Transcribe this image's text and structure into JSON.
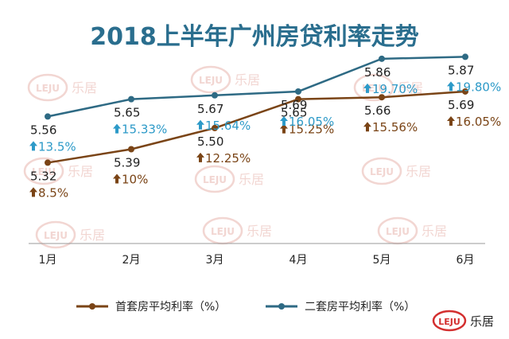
{
  "colors": {
    "title": "#2a6e8e",
    "first_home": "#7a4416",
    "second_home": "#2e6a84",
    "second_pct": "#2d9ac8",
    "arrow_first": "#7a4416",
    "arrow_second": "#2d9ac8",
    "axis": "#9a9a9a",
    "logo_red": "#d32f2f",
    "watermark": "#f2d6d2"
  },
  "logo": {
    "mark": "LEJU",
    "text": "乐居",
    "icon": "leju-logo-icon"
  },
  "chart_data": {
    "type": "line",
    "title": "2018上半年广州房贷利率走势",
    "categories": [
      "1月",
      "2月",
      "3月",
      "4月",
      "5月",
      "6月"
    ],
    "ylim": [
      4.9,
      6.0
    ],
    "grid": false,
    "legend_position": "bottom",
    "series": [
      {
        "name": "首套房平均利率（%）",
        "values": [
          5.32,
          5.39,
          5.5,
          5.65,
          5.66,
          5.69
        ],
        "value_labels": [
          "5.32",
          "5.39",
          "5.50",
          "5.65",
          "5.66",
          "5.69"
        ],
        "change_labels": [
          "8.5%",
          "10%",
          "12.25%",
          "15.25%",
          "15.56%",
          "16.05%"
        ]
      },
      {
        "name": "二套房平均利率（%）",
        "values": [
          5.56,
          5.65,
          5.67,
          5.69,
          5.86,
          5.87
        ],
        "value_labels": [
          "5.56",
          "5.65",
          "5.67",
          "5.69",
          "5.86",
          "5.87"
        ],
        "change_labels": [
          "13.5%",
          "15.33%",
          "15.64%",
          "16.05%",
          "19.70%",
          "19.80%"
        ]
      }
    ]
  }
}
